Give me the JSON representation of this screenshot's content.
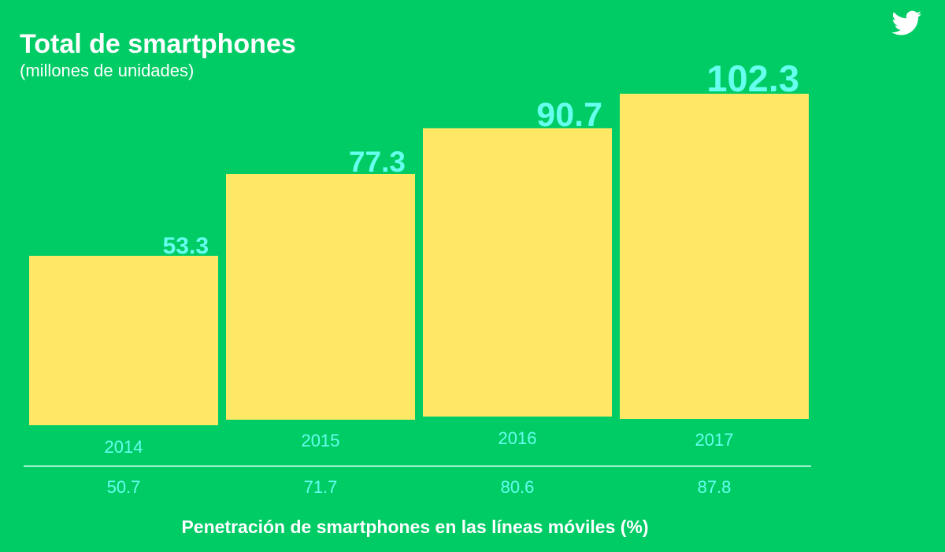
{
  "chart_data": {
    "type": "bar",
    "title": "Total de smartphones",
    "subtitle": "(millones de unidades)",
    "categories": [
      "2014",
      "2015",
      "2016",
      "2017"
    ],
    "values": [
      53.3,
      77.3,
      90.7,
      102.3
    ],
    "value_labels": [
      "53.3",
      "77.3",
      "90.7",
      "102.3"
    ],
    "secondary_row": {
      "label": "Penetración de smartphones en las líneas móviles (%)",
      "values": [
        "50.7",
        "71.7",
        "80.6",
        "87.8"
      ]
    },
    "grid": false,
    "legend": "none"
  },
  "colors": {
    "background": "#00cc66",
    "bar": "#ffe866",
    "value_text": "#66ffee",
    "title_text": "#ffffff"
  },
  "icons": {
    "logo": "twitter-bird-icon"
  }
}
